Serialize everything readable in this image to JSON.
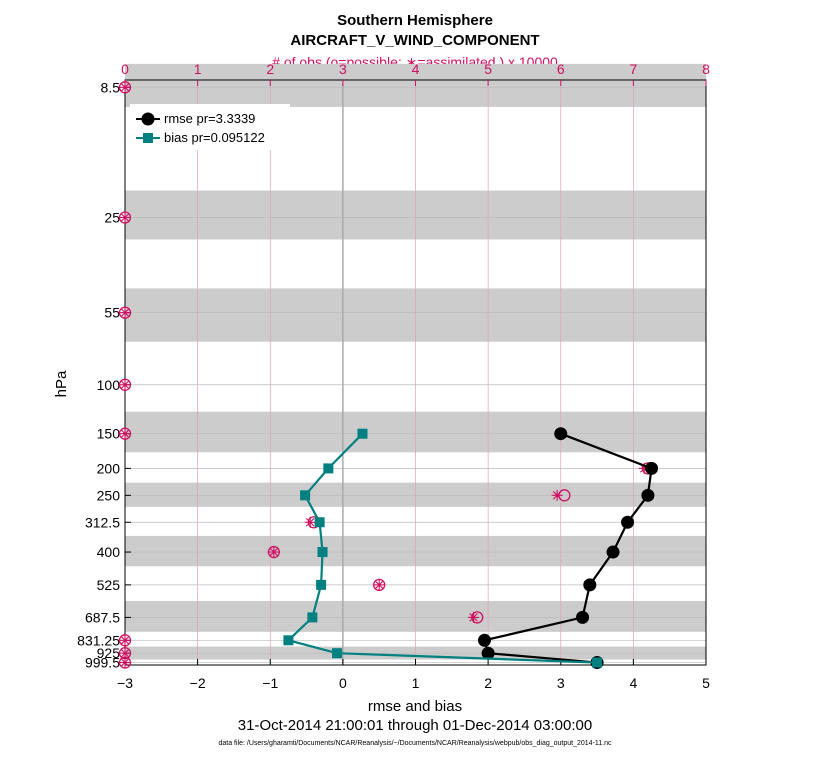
{
  "title_line1": "Southern Hemisphere",
  "title_line2": "AIRCRAFT_V_WIND_COMPONENT",
  "top_axis_label": "# of obs (o=possible; ∗=assimilated ) x 10000",
  "xlabel": "rmse and bias",
  "ylabel": "hPa",
  "date_range": "31-Oct-2014 21:00:01 through 01-Dec-2014 03:00:00",
  "data_file": "data file: /Users/gharamti/Documents/NCAR/Reanalysis/~/Documents/NCAR/Reanalysis/webpub/obs_diag_output_2014-11.nc",
  "colors": {
    "rmse": "#000000",
    "bias": "#008080",
    "obs": "#d01060",
    "band": "#cccccc"
  },
  "chart_data": {
    "type": "line",
    "xlim": [
      -3,
      5
    ],
    "x_ticks": [
      -3,
      -2,
      -1,
      0,
      1,
      2,
      3,
      4,
      5
    ],
    "x_tick_labels": [
      "−3",
      "−2",
      "−1",
      "0",
      "1",
      "2",
      "3",
      "4",
      "5"
    ],
    "top_xlim": [
      0,
      8
    ],
    "top_ticks": [
      "0",
      "1",
      "2",
      "3",
      "4",
      "5",
      "6",
      "7",
      "8"
    ],
    "y_scale": "log",
    "ylim": [
      1020,
      8
    ],
    "levels": [
      8.5,
      25,
      55,
      100,
      150,
      200,
      250,
      312.5,
      400,
      525,
      687.5,
      831.25,
      925,
      999.5
    ],
    "level_labels": [
      "8.5",
      "25",
      "55",
      "100",
      "150",
      "200",
      "250",
      "312.5",
      "400",
      "525",
      "687.5",
      "831.25",
      "925",
      "999.5"
    ],
    "bands": [
      [
        7,
        10
      ],
      [
        20,
        30
      ],
      [
        45,
        70
      ],
      [
        125,
        175
      ],
      [
        225,
        275
      ],
      [
        350,
        450
      ],
      [
        600,
        775
      ],
      [
        875,
        975
      ]
    ],
    "series": [
      {
        "name": "rmse pr=3.3339",
        "marker": "circle",
        "levels": [
          150,
          200,
          250,
          312.5,
          400,
          525,
          687.5,
          831.25,
          925,
          999.5
        ],
        "values": [
          3.0,
          4.25,
          4.2,
          3.92,
          3.72,
          3.4,
          3.3,
          1.95,
          2.0,
          3.5
        ]
      },
      {
        "name": "bias pr=0.095122",
        "marker": "square",
        "levels": [
          150,
          200,
          250,
          312.5,
          400,
          525,
          687.5,
          831.25,
          925,
          999.5
        ],
        "values": [
          0.27,
          -0.2,
          -0.52,
          -0.32,
          -0.28,
          -0.3,
          -0.42,
          -0.75,
          -0.08,
          3.5
        ]
      }
    ],
    "obs_possible": {
      "levels": [
        8.5,
        25,
        55,
        100,
        150,
        200,
        250,
        312.5,
        400,
        525,
        687.5,
        831.25,
        925,
        999.5
      ],
      "values": [
        0.0,
        0.0,
        0.0,
        0.0,
        0.0,
        7.2,
        6.05,
        2.6,
        2.05,
        3.5,
        4.85,
        0.0,
        0.0,
        0.0
      ]
    },
    "obs_assimilated": {
      "levels": [
        8.5,
        25,
        55,
        100,
        150,
        200,
        250,
        312.5,
        400,
        525,
        687.5,
        831.25,
        925,
        999.5
      ],
      "values": [
        0.0,
        0.0,
        0.0,
        0.0,
        0.0,
        7.15,
        5.95,
        2.55,
        2.05,
        3.5,
        4.8,
        0.0,
        0.0,
        0.0
      ]
    }
  }
}
